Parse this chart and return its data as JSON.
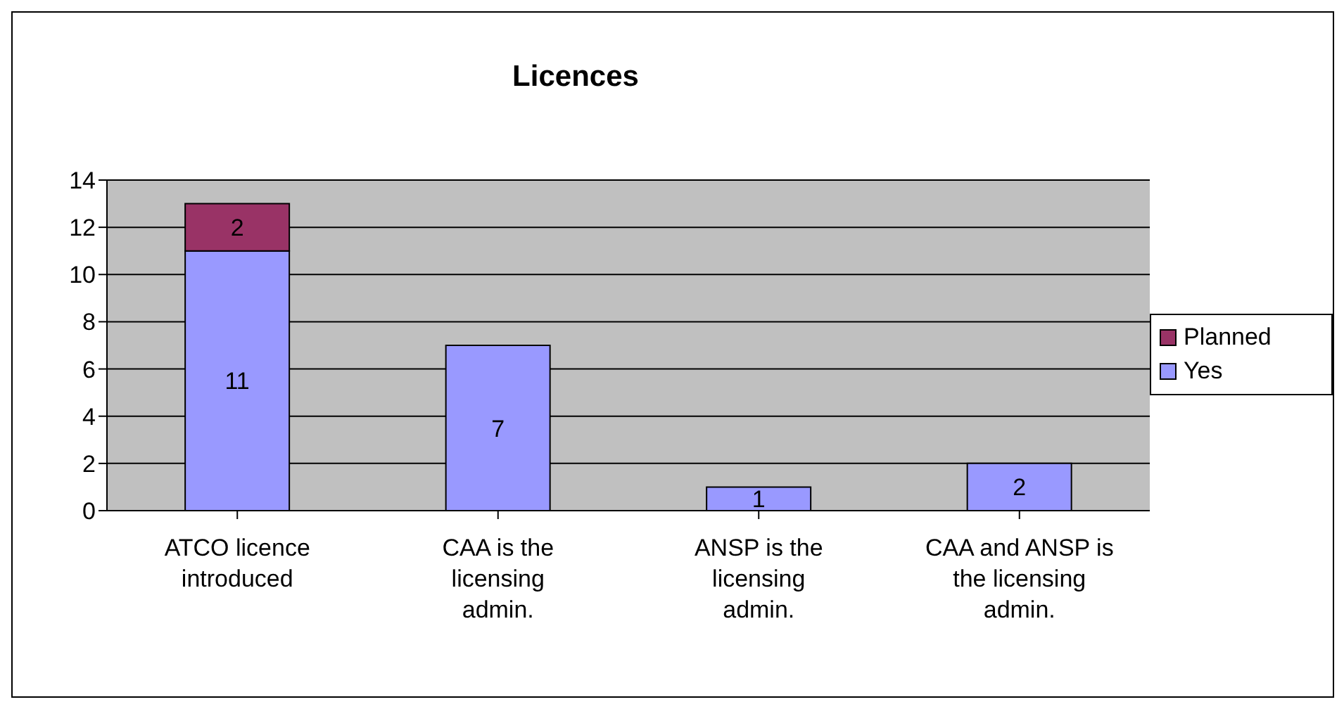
{
  "chart_data": {
    "type": "bar",
    "title": "Licences",
    "categories": [
      "ATCO licence introduced",
      "CAA is the licensing admin.",
      "ANSP is the licensing admin.",
      "CAA and ANSP is the licensing admin."
    ],
    "series": [
      {
        "name": "Yes",
        "color": "#9999ff",
        "values": [
          11,
          7,
          1,
          2
        ]
      },
      {
        "name": "Planned",
        "color": "#993366",
        "values": [
          2,
          null,
          null,
          null
        ]
      }
    ],
    "stacked": true,
    "ylim": [
      0,
      14
    ],
    "yticks": [
      0,
      2,
      4,
      6,
      8,
      10,
      12,
      14
    ],
    "grid": "y",
    "legend": "right",
    "data_labels": true
  }
}
